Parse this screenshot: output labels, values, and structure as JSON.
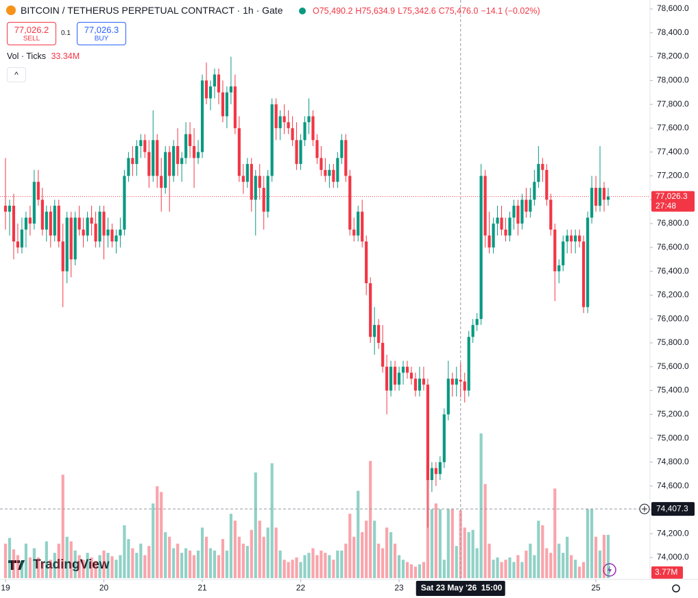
{
  "chart_data": {
    "type": "candlestick",
    "title": "BITCOIN / TETHERUS PERPETUAL CONTRACT · 1h · Gate",
    "ohlc": [
      {
        "key": "O",
        "value": "75,490.2"
      },
      {
        "key": "H",
        "value": "75,634.9"
      },
      {
        "key": "L",
        "value": "75,342.6"
      },
      {
        "key": "C",
        "value": "75,476.0"
      }
    ],
    "change": "−14.1 (−0.02%)",
    "trade": {
      "sell_price": "77,026.2",
      "sell": "SELL",
      "spread": "0.1",
      "buy_price": "77,026.3",
      "buy": "BUY"
    },
    "volume_legend": {
      "label": "Vol · Ticks",
      "value": "33.34M"
    },
    "up_color": "#089981",
    "down_color": "#f23645",
    "candles": [
      [
        76950,
        77350,
        76750,
        76900
      ],
      [
        76900,
        77000,
        76700,
        76950
      ],
      [
        76950,
        77050,
        76500,
        76650
      ],
      [
        76650,
        76800,
        76550,
        76600
      ],
      [
        76600,
        76850,
        76550,
        76750
      ],
      [
        76750,
        76900,
        76600,
        76850
      ],
      [
        76850,
        76950,
        76700,
        76800
      ],
      [
        76800,
        77250,
        76750,
        77150
      ],
      [
        77150,
        77250,
        76950,
        77000
      ],
      [
        77000,
        77100,
        76700,
        76750
      ],
      [
        76750,
        76950,
        76650,
        76900
      ],
      [
        76900,
        76950,
        76600,
        76700
      ],
      [
        76700,
        77000,
        76650,
        76950
      ],
      [
        76950,
        77000,
        76600,
        76650
      ],
      [
        76650,
        76800,
        76100,
        76400
      ],
      [
        76400,
        76900,
        76300,
        76850
      ],
      [
        76850,
        76900,
        76350,
        76500
      ],
      [
        76500,
        76900,
        76450,
        76850
      ],
      [
        76850,
        76950,
        76700,
        76750
      ],
      [
        76750,
        76850,
        76600,
        76700
      ],
      [
        76700,
        76900,
        76650,
        76850
      ],
      [
        76850,
        76950,
        76700,
        76800
      ],
      [
        76800,
        76900,
        76600,
        76650
      ],
      [
        76650,
        76950,
        76600,
        76900
      ],
      [
        76900,
        76950,
        76500,
        76700
      ],
      [
        76700,
        76850,
        76600,
        76750
      ],
      [
        76750,
        76800,
        76600,
        76650
      ],
      [
        76650,
        76750,
        76550,
        76700
      ],
      [
        76700,
        76850,
        76600,
        76750
      ],
      [
        76750,
        77250,
        76700,
        77200
      ],
      [
        77200,
        77400,
        77150,
        77350
      ],
      [
        77350,
        77450,
        77200,
        77300
      ],
      [
        77300,
        77500,
        77200,
        77450
      ],
      [
        77450,
        77550,
        77350,
        77500
      ],
      [
        77500,
        77550,
        77350,
        77400
      ],
      [
        77400,
        77500,
        77100,
        77200
      ],
      [
        77200,
        77750,
        77150,
        77500
      ],
      [
        77500,
        77550,
        77100,
        77200
      ],
      [
        77200,
        77350,
        76900,
        77100
      ],
      [
        77100,
        77450,
        77050,
        77400
      ],
      [
        77400,
        77450,
        76900,
        77200
      ],
      [
        77200,
        77500,
        77150,
        77450
      ],
      [
        77450,
        77600,
        77200,
        77300
      ],
      [
        77300,
        77400,
        77150,
        77350
      ],
      [
        77350,
        77650,
        77300,
        77550
      ],
      [
        77550,
        77650,
        77350,
        77450
      ],
      [
        77450,
        77600,
        77100,
        77350
      ],
      [
        77350,
        77500,
        77300,
        77400
      ],
      [
        77400,
        78050,
        77350,
        78000
      ],
      [
        78000,
        78150,
        77800,
        77850
      ],
      [
        77850,
        78000,
        77750,
        77950
      ],
      [
        77950,
        78100,
        77850,
        78050
      ],
      [
        78050,
        78100,
        77800,
        77900
      ],
      [
        77900,
        78000,
        77650,
        77700
      ],
      [
        77700,
        77950,
        77600,
        77900
      ],
      [
        77900,
        78200,
        77800,
        77950
      ],
      [
        77950,
        78050,
        77550,
        77600
      ],
      [
        77600,
        77700,
        77150,
        77200
      ],
      [
        77200,
        77300,
        77050,
        77150
      ],
      [
        77150,
        77350,
        77100,
        77300
      ],
      [
        77300,
        77350,
        76900,
        77000
      ],
      [
        77000,
        77250,
        76700,
        77200
      ],
      [
        77200,
        77300,
        77000,
        77100
      ],
      [
        77100,
        77200,
        76750,
        76900
      ],
      [
        76900,
        77250,
        76850,
        77200
      ],
      [
        77200,
        77850,
        77150,
        77800
      ],
      [
        77800,
        77850,
        77500,
        77600
      ],
      [
        77600,
        77750,
        77500,
        77700
      ],
      [
        77700,
        77800,
        77550,
        77650
      ],
      [
        77650,
        77750,
        77550,
        77600
      ],
      [
        77600,
        77700,
        77450,
        77500
      ],
      [
        77500,
        77650,
        77250,
        77300
      ],
      [
        77300,
        77550,
        77250,
        77500
      ],
      [
        77500,
        77700,
        77450,
        77650
      ],
      [
        77650,
        77850,
        77550,
        77700
      ],
      [
        77700,
        77750,
        77450,
        77500
      ],
      [
        77500,
        77550,
        77300,
        77350
      ],
      [
        77350,
        77450,
        77200,
        77250
      ],
      [
        77250,
        77350,
        77150,
        77200
      ],
      [
        77200,
        77300,
        77100,
        77250
      ],
      [
        77250,
        77300,
        77100,
        77150
      ],
      [
        77150,
        77400,
        77100,
        77350
      ],
      [
        77350,
        77550,
        77300,
        77500
      ],
      [
        77500,
        77550,
        77150,
        77200
      ],
      [
        77200,
        77250,
        76700,
        76750
      ],
      [
        76750,
        76850,
        76650,
        76700
      ],
      [
        76700,
        76950,
        76650,
        76900
      ],
      [
        76900,
        77000,
        76600,
        76650
      ],
      [
        76650,
        76700,
        76200,
        76300
      ],
      [
        76300,
        76350,
        75800,
        75850
      ],
      [
        75850,
        76100,
        75700,
        75950
      ],
      [
        75950,
        76000,
        75750,
        75800
      ],
      [
        75800,
        75950,
        75550,
        75600
      ],
      [
        75600,
        75700,
        75200,
        75400
      ],
      [
        75400,
        75650,
        75350,
        75600
      ],
      [
        75600,
        75650,
        75400,
        75450
      ],
      [
        75450,
        75600,
        75400,
        75550
      ],
      [
        75550,
        75650,
        75450,
        75600
      ],
      [
        75600,
        75650,
        75500,
        75550
      ],
      [
        75550,
        75600,
        75450,
        75500
      ],
      [
        75500,
        75550,
        75350,
        75400
      ],
      [
        75400,
        75600,
        75350,
        75500
      ],
      [
        75500,
        75600,
        75400,
        75450
      ],
      [
        75450,
        75500,
        74250,
        74650
      ],
      [
        74650,
        74800,
        74550,
        74750
      ],
      [
        74750,
        74800,
        74600,
        74700
      ],
      [
        74700,
        74850,
        74650,
        74800
      ],
      [
        74800,
        75250,
        74750,
        75200
      ],
      [
        75200,
        75650,
        75150,
        75500
      ],
      [
        75500,
        75550,
        75350,
        75450
      ],
      [
        75450,
        75600,
        75350,
        75500
      ],
      [
        75490.2,
        75634.9,
        75342.6,
        75476.0
      ],
      [
        75476,
        75550,
        75300,
        75400
      ],
      [
        75400,
        75900,
        75350,
        75850
      ],
      [
        75850,
        76000,
        75800,
        75950
      ],
      [
        75950,
        76050,
        75900,
        76000
      ],
      [
        76000,
        77300,
        75950,
        77200
      ],
      [
        77200,
        77250,
        76600,
        76700
      ],
      [
        76700,
        76900,
        76550,
        76600
      ],
      [
        76600,
        76850,
        76550,
        76800
      ],
      [
        76800,
        76950,
        76700,
        76850
      ],
      [
        76850,
        76950,
        76700,
        76750
      ],
      [
        76750,
        76850,
        76650,
        76700
      ],
      [
        76700,
        76900,
        76650,
        76850
      ],
      [
        76850,
        77000,
        76750,
        76950
      ],
      [
        76950,
        77000,
        76700,
        76800
      ],
      [
        76800,
        77050,
        76750,
        77000
      ],
      [
        77000,
        77100,
        76850,
        76900
      ],
      [
        76900,
        77100,
        76850,
        77000
      ],
      [
        77000,
        77250,
        76950,
        77150
      ],
      [
        77150,
        77450,
        77100,
        77300
      ],
      [
        77300,
        77350,
        77150,
        77250
      ],
      [
        77250,
        77300,
        76950,
        77000
      ],
      [
        77000,
        77050,
        76700,
        76750
      ],
      [
        76750,
        76800,
        76150,
        76400
      ],
      [
        76400,
        76500,
        76300,
        76450
      ],
      [
        76450,
        76700,
        76400,
        76650
      ],
      [
        76650,
        76750,
        76550,
        76700
      ],
      [
        76700,
        76750,
        76550,
        76650
      ],
      [
        76650,
        76750,
        76550,
        76700
      ],
      [
        76700,
        76750,
        76600,
        76650
      ],
      [
        76650,
        76700,
        76050,
        76100
      ],
      [
        76100,
        76900,
        76050,
        76850
      ],
      [
        76850,
        77200,
        76800,
        77100
      ],
      [
        77100,
        77200,
        76900,
        76950
      ],
      [
        76950,
        77450,
        76900,
        77100
      ],
      [
        77100,
        77150,
        76900,
        77000
      ],
      [
        77000,
        77100,
        76950,
        77026.3
      ]
    ],
    "volumes": [
      3.0,
      3.5,
      2.5,
      2.0,
      1.5,
      3.0,
      1.8,
      2.6,
      1.8,
      1.4,
      3.2,
      1.6,
      2.2,
      3.0,
      9.0,
      3.6,
      3.2,
      2.4,
      2.0,
      1.6,
      2.2,
      1.8,
      1.5,
      2.0,
      2.4,
      2.2,
      1.9,
      1.6,
      2.0,
      4.6,
      3.4,
      2.6,
      2.2,
      3.0,
      2.0,
      2.8,
      6.5,
      8.0,
      7.5,
      4.0,
      3.6,
      2.6,
      3.0,
      2.2,
      2.6,
      2.4,
      2.0,
      2.4,
      4.4,
      3.6,
      2.6,
      2.4,
      2.0,
      3.4,
      2.4,
      5.6,
      5.0,
      3.6,
      3.0,
      2.8,
      4.2,
      9.2,
      5.0,
      3.6,
      4.4,
      10.0,
      4.4,
      2.4,
      1.6,
      1.4,
      1.6,
      1.8,
      1.4,
      2.0,
      2.2,
      2.6,
      2.0,
      2.4,
      2.2,
      2.0,
      1.6,
      2.4,
      2.4,
      3.0,
      5.6,
      3.6,
      7.6,
      4.0,
      5.0,
      10.2,
      5.0,
      3.0,
      2.6,
      4.4,
      4.0,
      3.0,
      2.0,
      1.6,
      1.4,
      1.2,
      1.0,
      1.2,
      1.4,
      9.8,
      6.0,
      6.5,
      6.0,
      1.6,
      6.0,
      6.0,
      2.8,
      5.9,
      4.4,
      4.0,
      4.2,
      2.6,
      12.6,
      8.2,
      3.0,
      1.6,
      1.8,
      1.4,
      1.6,
      1.8,
      1.4,
      2.0,
      1.4,
      2.4,
      3.0,
      2.0,
      5.0,
      4.6,
      2.6,
      2.2,
      7.8,
      3.0,
      2.2,
      3.6,
      2.0,
      1.6,
      1.0,
      1.4,
      6.0,
      6.0,
      3.6,
      2.4,
      3.77,
      3.77
    ],
    "xlim": [
      -1.34,
      157.2
    ],
    "ylim": [
      74000,
      78600
    ],
    "xticks": [
      {
        "value": 0,
        "label": "19"
      },
      {
        "value": 24,
        "label": "20"
      },
      {
        "value": 48,
        "label": "21"
      },
      {
        "value": 72,
        "label": "22"
      },
      {
        "value": 96,
        "label": "23"
      },
      {
        "value": 144,
        "label": "25"
      }
    ],
    "yticks": [
      {
        "value": 74000,
        "label": "74,000.0"
      },
      {
        "value": 74200,
        "label": "74,200.0"
      },
      {
        "value": 74400,
        "label": "74,400.0"
      },
      {
        "value": 74600,
        "label": "74,600.0"
      },
      {
        "value": 74800,
        "label": "74,800.0"
      },
      {
        "value": 75000,
        "label": "75,000.0"
      },
      {
        "value": 75200,
        "label": "75,200.0"
      },
      {
        "value": 75400,
        "label": "75,400.0"
      },
      {
        "value": 75600,
        "label": "75,600.0"
      },
      {
        "value": 75800,
        "label": "75,800.0"
      },
      {
        "value": 76000,
        "label": "76,000.0"
      },
      {
        "value": 76200,
        "label": "76,200.0"
      },
      {
        "value": 76400,
        "label": "76,400.0"
      },
      {
        "value": 76600,
        "label": "76,600.0"
      },
      {
        "value": 76800,
        "label": "76,800.0"
      },
      {
        "value": 77000,
        "label": "77,000.0"
      },
      {
        "value": 77200,
        "label": "77,200.0"
      },
      {
        "value": 77400,
        "label": "77,400.0"
      },
      {
        "value": 77600,
        "label": "77,600.0"
      },
      {
        "value": 77800,
        "label": "77,800.0"
      },
      {
        "value": 78000,
        "label": "78,000.0"
      },
      {
        "value": 78200,
        "label": "78,200.0"
      },
      {
        "value": 78400,
        "label": "78,400.0"
      },
      {
        "value": 78600,
        "label": "78,600.0"
      }
    ],
    "last_price": {
      "value": 77026.3,
      "label": "77,026.3",
      "countdown": "27:48"
    },
    "last_volume": {
      "value": 3.77,
      "label": "3.77M"
    },
    "crosshair": {
      "x": 111,
      "price": 74407.3,
      "price_label": "74,407.3",
      "date_label": "Sat 23 May '26",
      "time_label": "15:00"
    },
    "logo": "TradingView"
  }
}
